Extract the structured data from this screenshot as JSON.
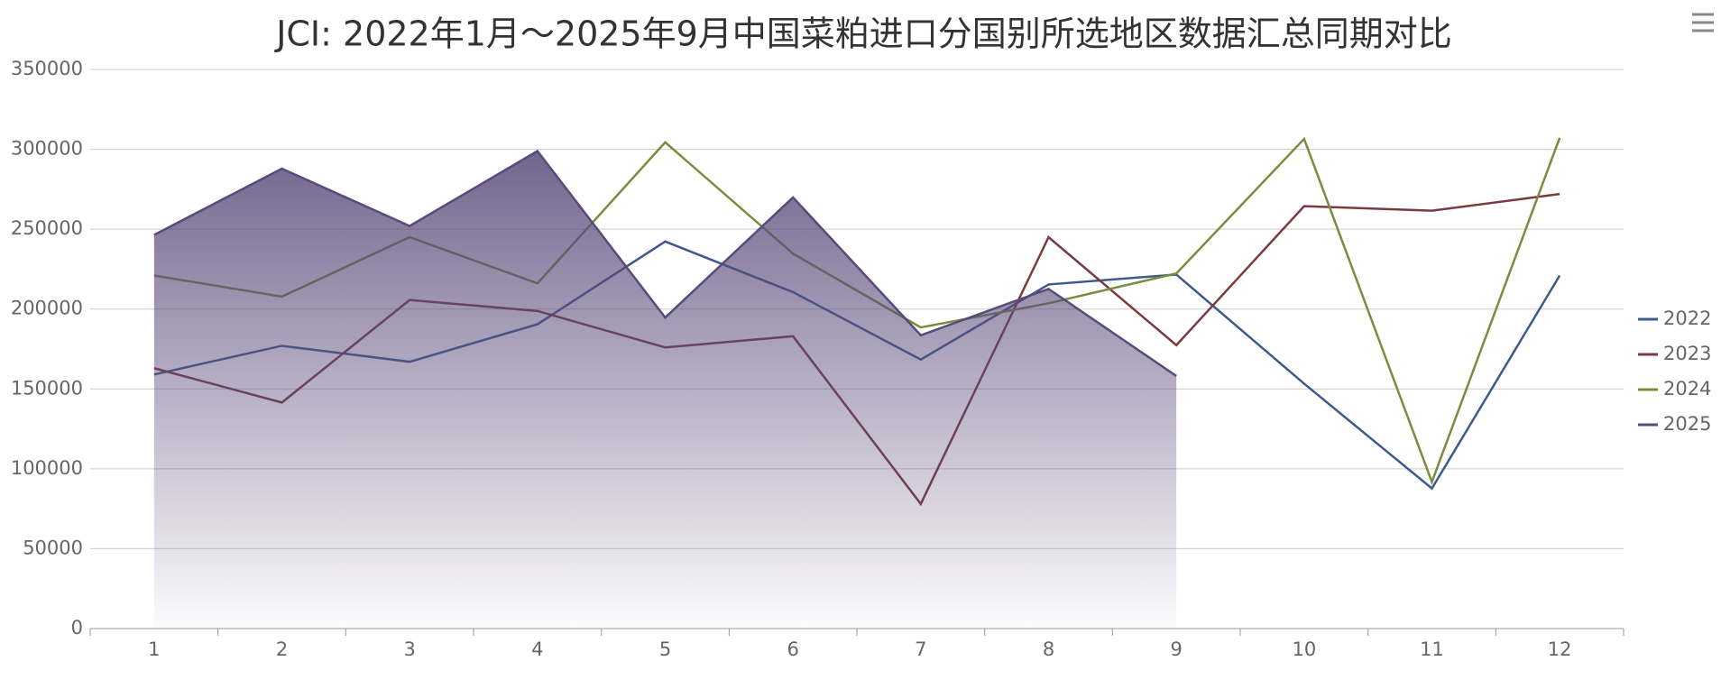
{
  "chart_data": {
    "type": "line",
    "title": "JCI: 2022年1月～2025年9月中国菜粕进口分国别所选地区数据汇总同期对比",
    "categories": [
      "1",
      "2",
      "3",
      "4",
      "5",
      "6",
      "7",
      "8",
      "9",
      "10",
      "11",
      "12"
    ],
    "series": [
      {
        "name": "2022",
        "color": "#3d5a8a",
        "values": [
          159000,
          177000,
          167000,
          190500,
          242300,
          210600,
          168400,
          215400,
          221600,
          153300,
          87700,
          221000
        ]
      },
      {
        "name": "2023",
        "color": "#7a3a40",
        "values": [
          163000,
          141500,
          205700,
          198800,
          176000,
          183000,
          78000,
          245000,
          177400,
          264400,
          261600,
          272000
        ]
      },
      {
        "name": "2024",
        "color": "#7a8c40",
        "values": [
          221000,
          207800,
          245000,
          216100,
          304400,
          234700,
          188500,
          203600,
          222300,
          306500,
          91800,
          307200
        ]
      },
      {
        "name": "2025",
        "color": "#5a4a7a",
        "area": true,
        "values": [
          246400,
          287900,
          252000,
          298900,
          194700,
          269900,
          183600,
          212600,
          158100,
          null,
          null,
          null
        ]
      }
    ],
    "ylim": [
      0,
      350000
    ],
    "yticks": [
      0,
      50000,
      100000,
      150000,
      200000,
      250000,
      300000,
      350000
    ],
    "grid": true,
    "legend": "right"
  }
}
